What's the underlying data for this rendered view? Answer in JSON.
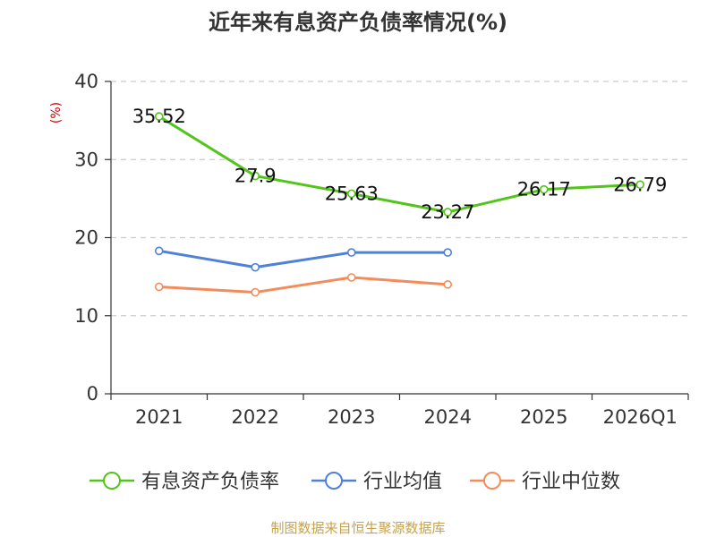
{
  "chart_data": {
    "type": "line",
    "title": "近年来有息资产负债率情况(%)",
    "ylabel": "(%)",
    "categories": [
      "2021",
      "2022",
      "2023",
      "2024",
      "2025",
      "2026Q1"
    ],
    "ylim": [
      0,
      40
    ],
    "yticks": [
      0,
      10,
      20,
      30,
      40
    ],
    "grid": true,
    "legend_position": "bottom",
    "series": [
      {
        "name": "有息资产负债率",
        "color": "#52c41a",
        "values": [
          35.52,
          27.9,
          25.63,
          23.27,
          26.17,
          26.79
        ],
        "labels": [
          "35.52",
          "27.9",
          "25.63",
          "23.27",
          "26.17",
          "26.79"
        ]
      },
      {
        "name": "行业均值",
        "color": "#4f81d8",
        "values": [
          18.3,
          16.2,
          18.1,
          18.1,
          null,
          null
        ]
      },
      {
        "name": "行业中位数",
        "color": "#f28c5a",
        "values": [
          13.7,
          13.0,
          14.9,
          14.0,
          null,
          null
        ]
      }
    ]
  },
  "footer": {
    "source": "制图数据来自恒生聚源数据库"
  }
}
